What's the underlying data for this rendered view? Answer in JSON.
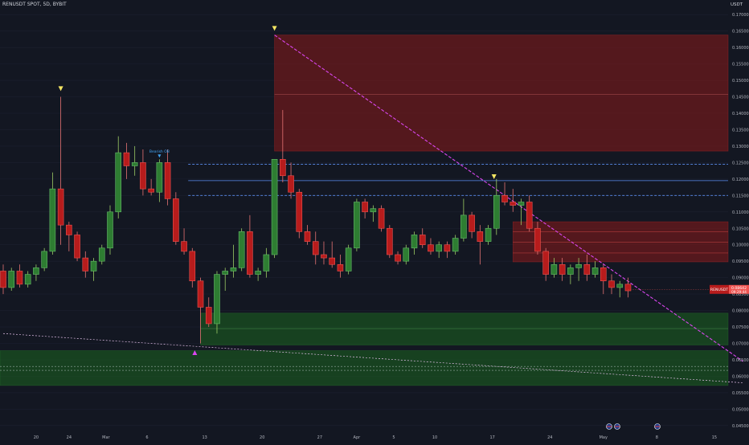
{
  "header": {
    "symbol_line": "RENUSDT SPOT, 5D, BYBIT",
    "currency": "USDT"
  },
  "price_label": {
    "symbol": "RENUSDT",
    "price": "0.08642",
    "countdown": "09:29:44"
  },
  "colors": {
    "background": "#131722",
    "up": "#26a69a",
    "down": "#ef5350",
    "bull_body": "#2e7d32",
    "bear_body": "#b71c1c",
    "supply_zone": "#8b1a1a",
    "demand_zone": "#1b5e20",
    "trendline": "#d946ef",
    "level_line": "#5b8def",
    "marker": "#f5e663"
  },
  "annotations": {
    "bearish_label": "Bearish OB"
  },
  "chart_data": {
    "type": "candlestick",
    "title": "RENUSDT SPOT, 5D, BYBIT",
    "y_axis": {
      "min": 0.043,
      "max": 0.1725,
      "ticks": [
        "0.17000",
        "0.16500",
        "0.16000",
        "0.15500",
        "0.15000",
        "0.14500",
        "0.14000",
        "0.13500",
        "0.13000",
        "0.12500",
        "0.12000",
        "0.11500",
        "0.11000",
        "0.10500",
        "0.10000",
        "0.09500",
        "0.09000",
        "0.08500",
        "0.08000",
        "0.07500",
        "0.07000",
        "0.06500",
        "0.06000",
        "0.05500",
        "0.05000",
        "0.04500"
      ]
    },
    "x_axis": {
      "ticks": [
        {
          "label": "20",
          "index": 4
        },
        {
          "label": "24",
          "index": 8
        },
        {
          "label": "Mar",
          "index": 12.5
        },
        {
          "label": "6",
          "index": 17.5
        },
        {
          "label": "13",
          "index": 24.5
        },
        {
          "label": "20",
          "index": 31.5
        },
        {
          "label": "27",
          "index": 38.5
        },
        {
          "label": "Apr",
          "index": 43
        },
        {
          "label": "5",
          "index": 47.5
        },
        {
          "label": "10",
          "index": 52.5
        },
        {
          "label": "17",
          "index": 59.5
        },
        {
          "label": "24",
          "index": 66.5
        },
        {
          "label": "May",
          "index": 73
        },
        {
          "label": "8",
          "index": 79.5
        },
        {
          "label": "15",
          "index": 86.5
        }
      ]
    },
    "candles": [
      [
        0.092,
        0.094,
        0.085,
        0.087
      ],
      [
        0.087,
        0.093,
        0.086,
        0.092
      ],
      [
        0.092,
        0.094,
        0.087,
        0.088
      ],
      [
        0.088,
        0.092,
        0.087,
        0.091
      ],
      [
        0.091,
        0.094,
        0.089,
        0.093
      ],
      [
        0.093,
        0.099,
        0.092,
        0.098
      ],
      [
        0.098,
        0.122,
        0.097,
        0.117
      ],
      [
        0.117,
        0.145,
        0.1,
        0.106
      ],
      [
        0.106,
        0.107,
        0.098,
        0.103
      ],
      [
        0.103,
        0.104,
        0.095,
        0.096
      ],
      [
        0.096,
        0.098,
        0.09,
        0.092
      ],
      [
        0.092,
        0.096,
        0.089,
        0.095
      ],
      [
        0.095,
        0.1,
        0.094,
        0.099
      ],
      [
        0.099,
        0.112,
        0.097,
        0.11
      ],
      [
        0.11,
        0.133,
        0.108,
        0.128
      ],
      [
        0.128,
        0.131,
        0.12,
        0.124
      ],
      [
        0.124,
        0.13,
        0.121,
        0.125
      ],
      [
        0.125,
        0.129,
        0.115,
        0.117
      ],
      [
        0.117,
        0.12,
        0.115,
        0.116
      ],
      [
        0.116,
        0.126,
        0.113,
        0.125
      ],
      [
        0.125,
        0.129,
        0.112,
        0.114
      ],
      [
        0.114,
        0.116,
        0.1,
        0.101
      ],
      [
        0.101,
        0.105,
        0.097,
        0.098
      ],
      [
        0.098,
        0.099,
        0.087,
        0.089
      ],
      [
        0.089,
        0.09,
        0.07,
        0.081
      ],
      [
        0.081,
        0.084,
        0.075,
        0.076
      ],
      [
        0.076,
        0.092,
        0.073,
        0.091
      ],
      [
        0.091,
        0.093,
        0.086,
        0.092
      ],
      [
        0.092,
        0.1,
        0.09,
        0.093
      ],
      [
        0.093,
        0.105,
        0.092,
        0.104
      ],
      [
        0.104,
        0.109,
        0.09,
        0.091
      ],
      [
        0.091,
        0.093,
        0.089,
        0.092
      ],
      [
        0.092,
        0.099,
        0.09,
        0.097
      ],
      [
        0.097,
        0.126,
        0.096,
        0.126
      ],
      [
        0.126,
        0.141,
        0.119,
        0.121
      ],
      [
        0.121,
        0.125,
        0.114,
        0.116
      ],
      [
        0.116,
        0.117,
        0.102,
        0.104
      ],
      [
        0.104,
        0.106,
        0.1,
        0.101
      ],
      [
        0.101,
        0.104,
        0.094,
        0.097
      ],
      [
        0.097,
        0.101,
        0.094,
        0.096
      ],
      [
        0.096,
        0.101,
        0.093,
        0.094
      ],
      [
        0.094,
        0.097,
        0.09,
        0.092
      ],
      [
        0.092,
        0.1,
        0.091,
        0.099
      ],
      [
        0.099,
        0.114,
        0.098,
        0.113
      ],
      [
        0.113,
        0.114,
        0.108,
        0.11
      ],
      [
        0.11,
        0.112,
        0.107,
        0.111
      ],
      [
        0.111,
        0.112,
        0.104,
        0.105
      ],
      [
        0.105,
        0.106,
        0.096,
        0.097
      ],
      [
        0.097,
        0.098,
        0.094,
        0.095
      ],
      [
        0.095,
        0.1,
        0.094,
        0.099
      ],
      [
        0.099,
        0.104,
        0.097,
        0.103
      ],
      [
        0.103,
        0.105,
        0.099,
        0.1
      ],
      [
        0.1,
        0.102,
        0.097,
        0.098
      ],
      [
        0.098,
        0.101,
        0.096,
        0.1
      ],
      [
        0.1,
        0.101,
        0.096,
        0.098
      ],
      [
        0.098,
        0.103,
        0.097,
        0.102
      ],
      [
        0.102,
        0.114,
        0.101,
        0.109
      ],
      [
        0.109,
        0.11,
        0.102,
        0.104
      ],
      [
        0.104,
        0.106,
        0.094,
        0.101
      ],
      [
        0.101,
        0.106,
        0.1,
        0.105
      ],
      [
        0.105,
        0.12,
        0.103,
        0.115
      ],
      [
        0.115,
        0.119,
        0.112,
        0.113
      ],
      [
        0.113,
        0.117,
        0.11,
        0.112
      ],
      [
        0.112,
        0.114,
        0.106,
        0.113
      ],
      [
        0.113,
        0.115,
        0.104,
        0.105
      ],
      [
        0.105,
        0.107,
        0.097,
        0.098
      ],
      [
        0.098,
        0.099,
        0.089,
        0.091
      ],
      [
        0.091,
        0.096,
        0.09,
        0.094
      ],
      [
        0.094,
        0.096,
        0.089,
        0.091
      ],
      [
        0.091,
        0.094,
        0.088,
        0.093
      ],
      [
        0.093,
        0.096,
        0.089,
        0.094
      ],
      [
        0.094,
        0.097,
        0.089,
        0.091
      ],
      [
        0.091,
        0.095,
        0.09,
        0.093
      ],
      [
        0.093,
        0.094,
        0.085,
        0.089
      ],
      [
        0.089,
        0.091,
        0.085,
        0.087
      ],
      [
        0.087,
        0.089,
        0.084,
        0.088
      ],
      [
        0.088,
        0.09,
        0.084,
        0.086
      ]
    ],
    "zones": [
      {
        "kind": "supply",
        "top": 0.1638,
        "bottom": 0.1285
      },
      {
        "kind": "supply",
        "top": 0.107,
        "bottom": 0.0948
      },
      {
        "kind": "demand",
        "top": 0.0792,
        "bottom": 0.0695
      },
      {
        "kind": "demand",
        "top": 0.0678,
        "bottom": 0.0572
      }
    ],
    "levels": [
      0.1245,
      0.1195,
      0.115
    ],
    "trendlines": [
      {
        "from": [
          33,
          0.1638
        ],
        "to": [
          90,
          0.0645
        ],
        "style": "dashed"
      },
      {
        "from": [
          0,
          0.073
        ],
        "to": [
          90,
          0.058
        ],
        "style": "dotted"
      }
    ],
    "markers": [
      {
        "index": 7,
        "price": 0.1475,
        "dir": "down"
      },
      {
        "index": 33,
        "price": 0.1658,
        "dir": "down"
      },
      {
        "index": 59.7,
        "price": 0.1207,
        "dir": "down"
      },
      {
        "index": 19,
        "price": 0.127,
        "dir": "down-small"
      },
      {
        "index": 23.3,
        "price": 0.0672,
        "dir": "up"
      }
    ],
    "current_price": 0.08642,
    "last_candle_index": 76
  }
}
